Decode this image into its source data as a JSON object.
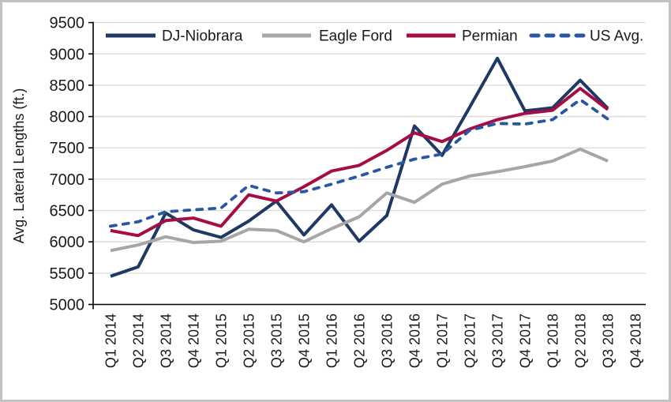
{
  "frame": {
    "background": "#ffffff",
    "border_color": "#c2c2c2"
  },
  "colors": {
    "gridline": "#d9d9d9",
    "axis": "#000000",
    "tick_text": "#1a1a1a"
  },
  "chart_data": {
    "type": "line",
    "title": "",
    "xlabel": "",
    "ylabel": "Avg. Lateral Lengths (ft.)",
    "ylim": [
      5000,
      9500
    ],
    "ytick_step": 500,
    "grid": "horizontal",
    "legend_position": "top",
    "categories": [
      "Q1 2014",
      "Q2 2014",
      "Q3 2014",
      "Q4 2014",
      "Q1 2015",
      "Q2 2015",
      "Q3 2015",
      "Q4 2015",
      "Q1 2016",
      "Q2 2016",
      "Q3 2016",
      "Q4 2016",
      "Q1 2017",
      "Q2 2017",
      "Q3 2017",
      "Q4 2017",
      "Q1 2018",
      "Q2 2018",
      "Q3 2018",
      "Q4 2018"
    ],
    "series": [
      {
        "name": "DJ-Niobrara",
        "color": "#1F3864",
        "style": "solid",
        "values": [
          5450,
          5600,
          6460,
          6190,
          6070,
          6330,
          6650,
          6110,
          6590,
          6010,
          6420,
          7850,
          7380,
          8150,
          8930,
          8090,
          8140,
          8580,
          8130,
          null
        ]
      },
      {
        "name": "Eagle Ford",
        "color": "#A6A6A6",
        "style": "solid",
        "values": [
          5860,
          5950,
          6080,
          5990,
          6010,
          6200,
          6180,
          6000,
          6210,
          6400,
          6780,
          6630,
          6920,
          7050,
          7120,
          7200,
          7290,
          7480,
          7290,
          null
        ]
      },
      {
        "name": "Permian",
        "color": "#A50D45",
        "style": "solid",
        "values": [
          6180,
          6100,
          6340,
          6380,
          6250,
          6750,
          6650,
          6880,
          7130,
          7220,
          7460,
          7740,
          7600,
          7800,
          7950,
          8050,
          8100,
          8450,
          8110,
          null
        ]
      },
      {
        "name": "US Avg.",
        "color": "#2A57A3",
        "style": "dashed",
        "values": [
          6250,
          6320,
          6480,
          6510,
          6540,
          6900,
          6780,
          6800,
          6920,
          7050,
          7190,
          7320,
          7400,
          7780,
          7890,
          7880,
          7950,
          8270,
          7960,
          null
        ]
      }
    ]
  }
}
